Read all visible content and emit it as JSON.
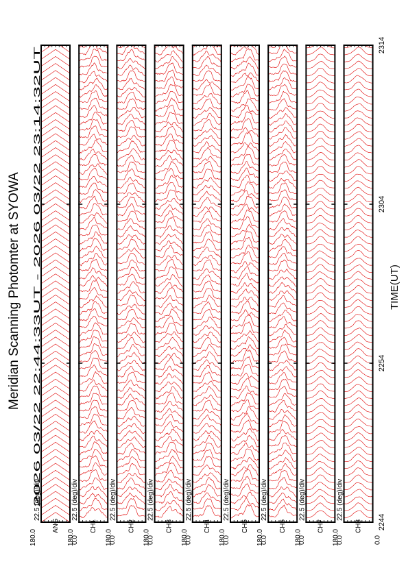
{
  "title": "Meridian Scanning Photomter at SYOWA",
  "subtitle": "2026 03/22 22:44:33UT - 2026 03/22 23:14:32UT",
  "xlabel": "TIME(UT)",
  "colors": {
    "trace": "#e00000",
    "frame": "#000000",
    "tick": "#000000"
  },
  "chart_data": {
    "type": "line",
    "title": "Meridian Scanning Photomter at SYOWA",
    "subtitle": "2026 03/22 22:44:33UT - 2026 03/22 23:14:32UT",
    "xlabel": "TIME(UT)",
    "x_ticks": [
      "2244",
      "2254",
      "2304",
      "2314"
    ],
    "x_range": [
      "22:44:33",
      "23:14:32"
    ],
    "y_range_deg": [
      0.0,
      180.0
    ],
    "scale_label": "22.5 (deg)/div",
    "panels": [
      {
        "channel": "ANG",
        "ymax": "180.0",
        "ymin": "0.0",
        "scale": "22.5 (deg)/div",
        "variability": 0.0,
        "peak_deg": 0
      },
      {
        "channel": "CH1",
        "ymax": "180.0",
        "ymin": "0.0",
        "scale": "22.5 (deg)/div",
        "variability": 0.55,
        "peak_deg": 100
      },
      {
        "channel": "CH2",
        "ymax": "180.0",
        "ymin": "0.0",
        "scale": "22.5 (deg)/div",
        "variability": 0.5,
        "peak_deg": 95
      },
      {
        "channel": "CH3",
        "ymax": "180.0",
        "ymin": "0.0",
        "scale": "22.5 (deg)/div",
        "variability": 0.55,
        "peak_deg": 105
      },
      {
        "channel": "CH4",
        "ymax": "180.0",
        "ymin": "0.0",
        "scale": "22.5 (deg)/div",
        "variability": 0.5,
        "peak_deg": 100
      },
      {
        "channel": "CH5",
        "ymax": "180.0",
        "ymin": "0.0",
        "scale": "22.5 (deg)/div",
        "variability": 0.6,
        "peak_deg": 110
      },
      {
        "channel": "CH6",
        "ymax": "180.0",
        "ymin": "0.0",
        "scale": "22.5 (deg)/div",
        "variability": 0.5,
        "peak_deg": 100
      },
      {
        "channel": "CH7",
        "ymax": "180.0",
        "ymin": "0.0",
        "scale": "22.5 (deg)/div",
        "variability": 0.1,
        "peak_deg": 90
      },
      {
        "channel": "CH8",
        "ymax": "180.0",
        "ymin": "0.0",
        "scale": "22.5 (deg)/div",
        "variability": 0.1,
        "peak_deg": 90
      }
    ]
  }
}
